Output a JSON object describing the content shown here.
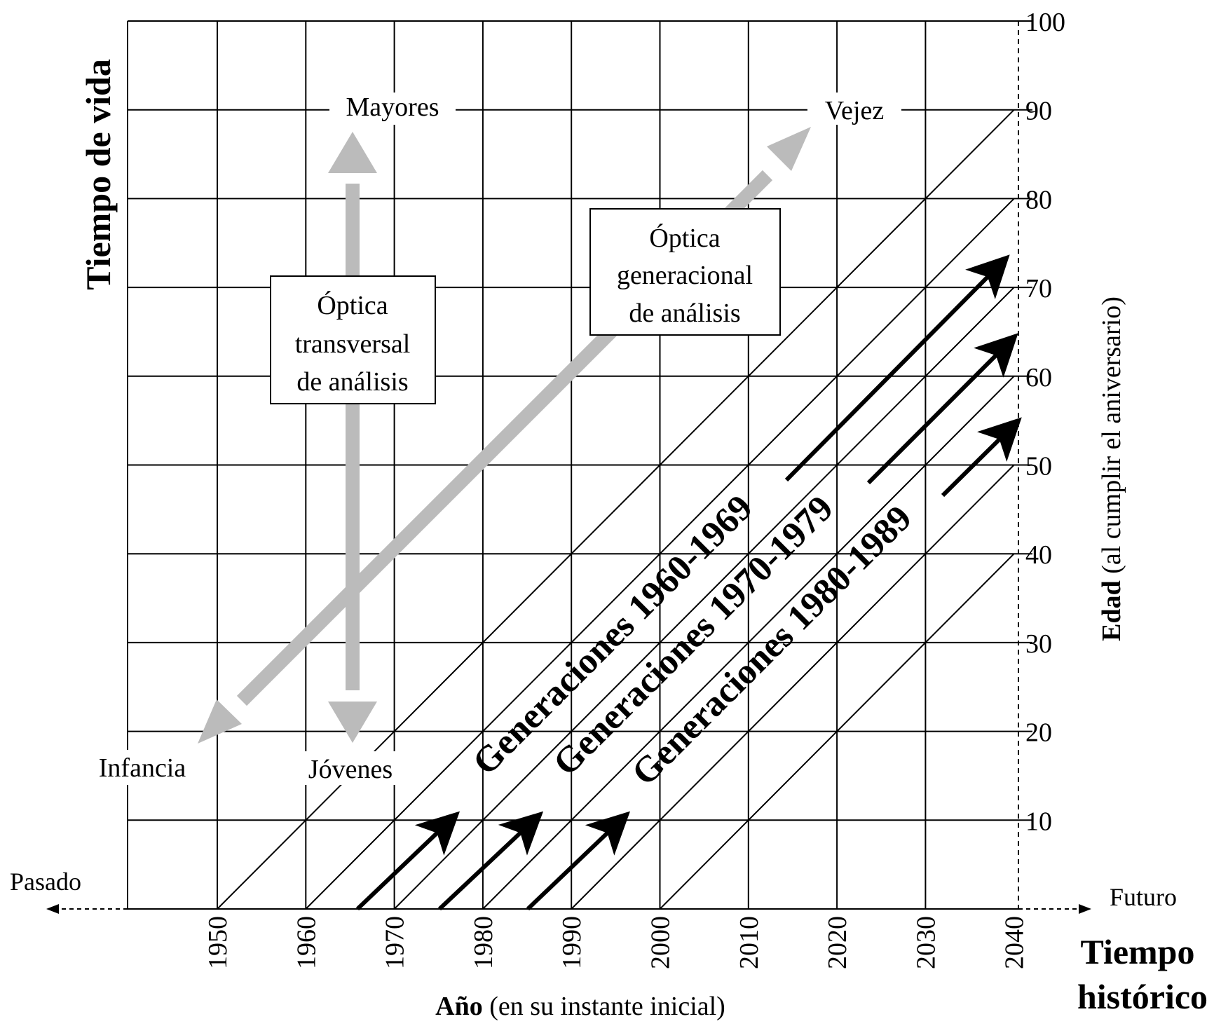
{
  "axes": {
    "x_title_bold": "Año",
    "x_title_rest": "(en su instante inicial)",
    "x_ticks": [
      "1950",
      "1960",
      "1970",
      "1980",
      "1990",
      "2000",
      "2010",
      "2020",
      "2030",
      "2040"
    ],
    "y_right_title_bold": "Edad",
    "y_right_title_rest": "(al cumplir el aniversario)",
    "y_ticks": [
      "10",
      "20",
      "30",
      "40",
      "50",
      "60",
      "70",
      "80",
      "90",
      "100"
    ],
    "y_left_title": "Tiempo de vida",
    "time_label_line1": "Tiempo",
    "time_label_line2": "histórico",
    "past": "Pasado",
    "future": "Futuro"
  },
  "stages": {
    "infancia": "Infancia",
    "jovenes": "Jóvenes",
    "mayores": "Mayores",
    "vejez": "Vejez"
  },
  "boxes": {
    "transversal": [
      "Óptica",
      "transversal",
      "de análisis"
    ],
    "generacional": [
      "Óptica",
      "generacional",
      "de análisis"
    ]
  },
  "generations": [
    {
      "label": "Generaciones 1960-1969"
    },
    {
      "label": "Generaciones 1970-1979"
    },
    {
      "label": "Generaciones 1980-1989"
    }
  ],
  "colors": {
    "grid": "#000000",
    "thick_arrow": "#bbbbbb"
  }
}
